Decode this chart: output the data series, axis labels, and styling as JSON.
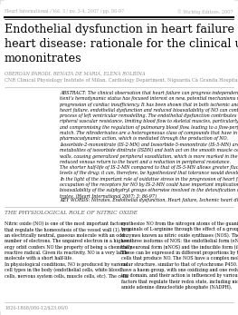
{
  "header_left": "Heart International / Vol. 3 / no. 3-4, 2007 / pp. 86-97",
  "header_right": "© Wichtig Editore, 2007",
  "title_line1": "Endothelial dysfunction in heart failure and ischemic",
  "title_line2": "heart disease: rationale for the clinical use of",
  "title_line3": "mononitrates",
  "authors": "OBERDAN PARODI, RENATA DE MARIA, ELÉNA ROLBINA",
  "affiliation": "CNR Clinical Physiology Institute of Milan, Cardiology Department, Niguarda Cà Granda Hospital, Milan · Italy",
  "abstract_text": "ABSTRACT: The clinical observation that heart failure can progress independently of the pa-\ntient’s hemodynamic status has focused interest on new, potential mechanisms underlying the\nprogression of cardiac insufficiency. It has been shown that in both ischemic and non-ischemic\nheart failure, endothelial dysfunction and reduced bioavailability of NO can contribute to the\nprocess of left ventricular remodelling. The endothelial dysfunction contributes to increasing pe-\nripheral vascular resistance, limiting blood flow to skeletal muscles, particularly during exercise,\nand compromising the regulation of pulmonary blood flow, leading to a flow-perfusion mis-\nmatch. The nitroderivates are a heterogeneous class of compounds that have in common their\npharmacodynamic action, which is mediated through the production of NO.\nIsosorbide-2-mononitrate (IS-2-MN) and Isosorbide-5-mononitrate (IS-5-MN) are the two main\nmetabolites of isosorbide dinitrate (ISDN) and both act on the smooth muscle cells of vessel\nwalls, causing generalized peripheral vasodilation, which is more marked in the venous system,\nreduced venous return to the heart and a reduction in peripheral resistance.\nThe shorter half-life of IS-2-MN compared to that of IS-5-MN allows greater fluctuation of the blood\nlevels of the drug; it can, therefore, be hypothesized that tolerance would develop more slowly.\nIn the light of the important role of oxidative stress in the progression of heart failure, reduced\noccupation of the receptors for NO by IS-2-MN could have important implications for the\nbioavailability of the sulphydryl groups otherwise involved in the detoxification of the organic ni-\ntrates. (Heart International 2007; 3: 86-97)",
  "keywords": "KEY WORDS: Nitrates, Endothelial dysfunction, Heart failure, Ischemic heart disease",
  "section_title": "THE PHYSIOLOGICAL ROLE OF NITRIC OXIDE",
  "col1_text": "Nitric oxide (NO) is one of the most important factors\nthat regulate the homeostasis of the vessel wall (1). It is\nan electrically neutral, gaseous molecule with an odd\nnumber of electrons. The unpaired electron in a high en-\nergy orbit confers NO the property of being a chemically\nreactive radical. Given its reactivity, NO is a very labile\nmolecule with a short half-life.\nIn physiological conditions, NO is produced by various\ncell types in the body (endothelial cells, white blood\ncells, nervous system cells, muscle cells, etc). The cells",
  "col2_text": "synthesize NO from the nitrogen atoms of the guanidine\nterminals of L-arginine through the effect of a group of\nenzymes known as nitric oxide synthases (NOS). There\nare three isoforms of NOS: the endothelial form (eNOS),\nthe neuronal form (nNOS) and the inducible form (iNOS).\nThese can be expressed in different proportions by the\ncells that produce NO. The NOS have a complex mole-\ncular structure, similar to that of cytochrome P450. They\nhave a haem group, with one oxidizing and one reduc-\ning domain, and their action is influenced by various co-\nfactors that regulate their redox state, including nicotin-\namide adenine dinucleotide phosphate (NADPH),",
  "footer_text": "1826-1868/086-12/$23.00/0",
  "bg_color": "#ffffff",
  "text_color": "#000000",
  "gray_text": "#777777",
  "light_gray": "#aaaaaa"
}
